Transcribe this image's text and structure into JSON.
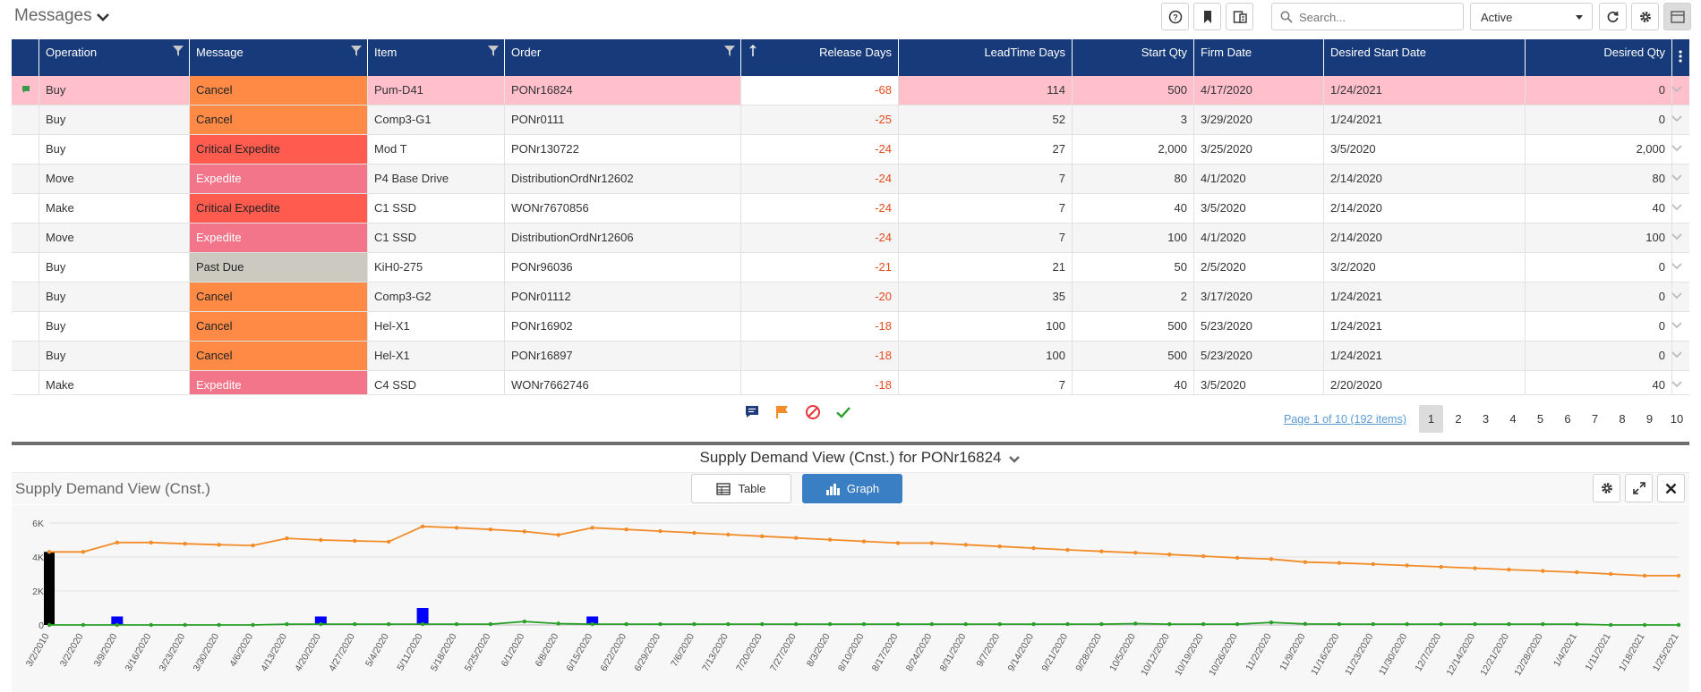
{
  "header": {
    "title": "Messages",
    "search_placeholder": "Search...",
    "status_filter": "Active"
  },
  "grid": {
    "columns": [
      "Operation",
      "Message",
      "Item",
      "Order",
      "Release Days",
      "LeadTime Days",
      "Start Qty",
      "Firm Date",
      "Desired Start Date",
      "Desired Qty"
    ],
    "rows": [
      {
        "operation": "Buy",
        "message": "Cancel",
        "message_type": "cancel",
        "item": "Pum-D41",
        "order": "PONr16824",
        "release_days": "-68",
        "leadtime_days": "114",
        "start_qty": "500",
        "firm_date": "4/17/2020",
        "desired_start_date": "1/24/2021",
        "desired_qty": "0",
        "flagged": true,
        "selected": true
      },
      {
        "operation": "Buy",
        "message": "Cancel",
        "message_type": "cancel",
        "item": "Comp3-G1",
        "order": "PONr0111",
        "release_days": "-25",
        "leadtime_days": "52",
        "start_qty": "3",
        "firm_date": "3/29/2020",
        "desired_start_date": "1/24/2021",
        "desired_qty": "0"
      },
      {
        "operation": "Buy",
        "message": "Critical Expedite",
        "message_type": "critical",
        "item": "Mod T",
        "order": "PONr130722",
        "release_days": "-24",
        "leadtime_days": "27",
        "start_qty": "2,000",
        "firm_date": "3/25/2020",
        "desired_start_date": "3/5/2020",
        "desired_qty": "2,000"
      },
      {
        "operation": "Move",
        "message": "Expedite",
        "message_type": "expedite",
        "item": "P4 Base Drive",
        "order": "DistributionOrdNr12602",
        "release_days": "-24",
        "leadtime_days": "7",
        "start_qty": "80",
        "firm_date": "4/1/2020",
        "desired_start_date": "2/14/2020",
        "desired_qty": "80"
      },
      {
        "operation": "Make",
        "message": "Critical Expedite",
        "message_type": "critical",
        "item": "C1 SSD",
        "order": "WONr7670856",
        "release_days": "-24",
        "leadtime_days": "7",
        "start_qty": "40",
        "firm_date": "3/5/2020",
        "desired_start_date": "2/14/2020",
        "desired_qty": "40"
      },
      {
        "operation": "Move",
        "message": "Expedite",
        "message_type": "expedite",
        "item": "C1 SSD",
        "order": "DistributionOrdNr12606",
        "release_days": "-24",
        "leadtime_days": "7",
        "start_qty": "100",
        "firm_date": "4/1/2020",
        "desired_start_date": "2/14/2020",
        "desired_qty": "100"
      },
      {
        "operation": "Buy",
        "message": "Past Due",
        "message_type": "pastdue",
        "item": "KiH0-275",
        "order": "PONr96036",
        "release_days": "-21",
        "leadtime_days": "21",
        "start_qty": "50",
        "firm_date": "2/5/2020",
        "desired_start_date": "3/2/2020",
        "desired_qty": "0"
      },
      {
        "operation": "Buy",
        "message": "Cancel",
        "message_type": "cancel",
        "item": "Comp3-G2",
        "order": "PONr01112",
        "release_days": "-20",
        "leadtime_days": "35",
        "start_qty": "2",
        "firm_date": "3/17/2020",
        "desired_start_date": "1/24/2021",
        "desired_qty": "0"
      },
      {
        "operation": "Buy",
        "message": "Cancel",
        "message_type": "cancel",
        "item": "Hel-X1",
        "order": "PONr16902",
        "release_days": "-18",
        "leadtime_days": "100",
        "start_qty": "500",
        "firm_date": "5/23/2020",
        "desired_start_date": "1/24/2021",
        "desired_qty": "0"
      },
      {
        "operation": "Buy",
        "message": "Cancel",
        "message_type": "cancel",
        "item": "Hel-X1",
        "order": "PONr16897",
        "release_days": "-18",
        "leadtime_days": "100",
        "start_qty": "500",
        "firm_date": "5/23/2020",
        "desired_start_date": "1/24/2021",
        "desired_qty": "0"
      },
      {
        "operation": "Make",
        "message": "Expedite",
        "message_type": "expedite",
        "item": "C4 SSD",
        "order": "WONr7662746",
        "release_days": "-18",
        "leadtime_days": "7",
        "start_qty": "40",
        "firm_date": "3/5/2020",
        "desired_start_date": "2/20/2020",
        "desired_qty": "40"
      }
    ]
  },
  "pager": {
    "summary": "Page 1 of 10 (192 items)",
    "pages": [
      "1",
      "2",
      "3",
      "4",
      "5",
      "6",
      "7",
      "8",
      "9",
      "10"
    ],
    "current": "1"
  },
  "panel": {
    "title": "Supply Demand View (Cnst.) for PONr16824",
    "subtitle": "Supply Demand View (Cnst.)",
    "table_label": "Table",
    "graph_label": "Graph"
  },
  "colors": {
    "header_bg": "#173a7a",
    "cancel": "#ff8a45",
    "critical_expedite": "#ff5b4f",
    "expedite": "#f2758a",
    "past_due": "#cccac0",
    "selected_row": "#ffc0cb",
    "negative_value": "#e8491d",
    "graph_button": "#3a7fc3"
  },
  "chart_data": {
    "type": "line",
    "ylim": [
      0,
      6000
    ],
    "y_ticks": [
      "0",
      "2K",
      "4K",
      "6K"
    ],
    "grid": true,
    "categories": [
      "3/2/2010",
      "3/2/2020",
      "3/9/2020",
      "3/16/2020",
      "3/23/2020",
      "3/30/2020",
      "4/6/2020",
      "4/13/2020",
      "4/20/2020",
      "4/27/2020",
      "5/4/2020",
      "5/11/2020",
      "5/18/2020",
      "5/25/2020",
      "6/1/2020",
      "6/8/2020",
      "6/15/2020",
      "6/22/2020",
      "6/29/2020",
      "7/6/2020",
      "7/13/2020",
      "7/20/2020",
      "7/27/2020",
      "8/3/2020",
      "8/10/2020",
      "8/17/2020",
      "8/24/2020",
      "8/31/2020",
      "9/7/2020",
      "9/14/2020",
      "9/21/2020",
      "9/28/2020",
      "10/5/2020",
      "10/12/2020",
      "10/19/2020",
      "10/26/2020",
      "11/2/2020",
      "11/9/2020",
      "11/16/2020",
      "11/23/2020",
      "11/30/2020",
      "12/7/2020",
      "12/14/2020",
      "12/21/2020",
      "12/28/2020",
      "1/4/2021",
      "1/11/2021",
      "1/18/2021",
      "1/25/2021"
    ],
    "series": [
      {
        "color": "#f28c28",
        "kind": "line",
        "values": [
          4300,
          4300,
          4850,
          4850,
          4780,
          4720,
          4680,
          5100,
          5000,
          4950,
          4900,
          5800,
          5720,
          5620,
          5500,
          5300,
          5720,
          5620,
          5520,
          5420,
          5320,
          5220,
          5120,
          5020,
          4920,
          4820,
          4820,
          4720,
          4620,
          4520,
          4420,
          4330,
          4250,
          4150,
          4050,
          3950,
          3880,
          3700,
          3650,
          3580,
          3500,
          3420,
          3340,
          3260,
          3180,
          3100,
          3000,
          2900,
          2900
        ]
      },
      {
        "color": "#2aa02a",
        "kind": "line",
        "values": [
          0,
          0,
          0,
          0,
          0,
          0,
          0,
          50,
          50,
          50,
          50,
          50,
          50,
          50,
          200,
          80,
          50,
          50,
          50,
          50,
          50,
          50,
          50,
          50,
          50,
          50,
          50,
          50,
          50,
          50,
          50,
          50,
          80,
          50,
          50,
          50,
          150,
          60,
          50,
          50,
          50,
          50,
          50,
          50,
          50,
          50,
          0,
          0,
          0
        ]
      },
      {
        "color": "#0000ff",
        "kind": "bar",
        "values": [
          0,
          0,
          500,
          0,
          0,
          0,
          0,
          0,
          500,
          0,
          0,
          1000,
          0,
          0,
          0,
          0,
          500,
          0,
          0,
          0,
          0,
          0,
          0,
          0,
          0,
          0,
          0,
          0,
          0,
          0,
          0,
          0,
          0,
          0,
          0,
          0,
          0,
          0,
          0,
          0,
          0,
          0,
          0,
          0,
          0,
          0,
          0,
          0,
          0
        ]
      },
      {
        "color": "#000000",
        "kind": "bar",
        "values": [
          4300,
          0,
          0,
          0,
          0,
          0,
          0,
          0,
          0,
          0,
          0,
          0,
          0,
          0,
          0,
          0,
          0,
          0,
          0,
          0,
          0,
          0,
          0,
          0,
          0,
          0,
          0,
          0,
          0,
          0,
          0,
          0,
          0,
          0,
          0,
          0,
          0,
          0,
          0,
          0,
          0,
          0,
          0,
          0,
          0,
          0,
          0,
          0,
          0
        ]
      }
    ]
  }
}
